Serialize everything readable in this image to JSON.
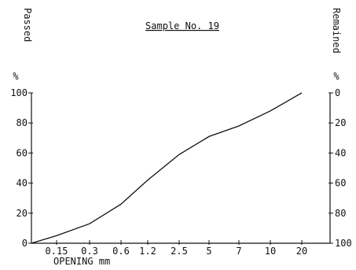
{
  "chart_data": {
    "type": "line",
    "title": "Sample No. 19",
    "xlabel": "OPENING mm",
    "ylabel_left": "Passed",
    "ylabel_right": "Remained",
    "left_unit": "%",
    "right_unit": "%",
    "x_categories": [
      "0.15",
      "0.3",
      "0.6",
      "1.2",
      "2.5",
      "5",
      "7",
      "10",
      "20"
    ],
    "ylim": [
      0,
      100
    ],
    "left_ticks": [
      "0",
      "20",
      "40",
      "60",
      "80",
      "100"
    ],
    "right_ticks": [
      "100",
      "80",
      "60",
      "40",
      "20",
      "0"
    ],
    "grid": false,
    "series": [
      {
        "x": [
          0.08,
          0.15,
          0.3,
          0.6,
          1.2,
          2.5,
          5,
          7,
          10,
          20
        ],
        "y": [
          0,
          5,
          13,
          26,
          42,
          59,
          71,
          78,
          88,
          100
        ]
      }
    ],
    "colors": {
      "line": "#111111",
      "axis": "#111111"
    }
  }
}
